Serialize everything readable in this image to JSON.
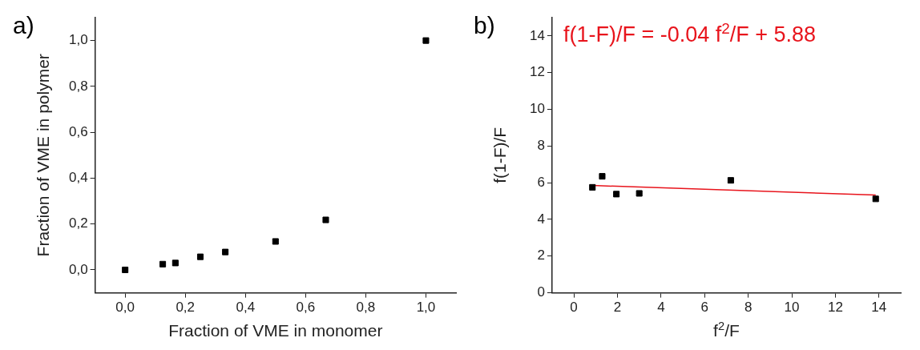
{
  "chart_data": [
    {
      "type": "scatter",
      "title": "a)",
      "xlabel": "Fraction of VME in monomer",
      "ylabel": "Fraction of VME in polymer",
      "x": [
        0,
        0.125,
        0.167,
        0.25,
        0.333,
        0.5,
        0.667,
        1.0
      ],
      "series": [
        {
          "color": "#000000",
          "values": [
            0,
            0.025,
            0.03,
            0.057,
            0.078,
            0.124,
            0.218,
            1.0
          ]
        }
      ],
      "xlim": [
        -0.1,
        1.1
      ],
      "ylim": [
        -0.1,
        1.1
      ],
      "xticks": [
        {
          "value": 0,
          "label": "0,0"
        },
        {
          "value": 0.2,
          "label": "0,2"
        },
        {
          "value": 0.4,
          "label": "0,4"
        },
        {
          "value": 0.6,
          "label": "0,6"
        },
        {
          "value": 0.8,
          "label": "0,8"
        },
        {
          "value": 1.0,
          "label": "1,0"
        }
      ],
      "yticks": [
        {
          "value": 0,
          "label": "0,0"
        },
        {
          "value": 0.2,
          "label": "0,2"
        },
        {
          "value": 0.4,
          "label": "0,4"
        },
        {
          "value": 0.6,
          "label": "0,6"
        },
        {
          "value": 0.8,
          "label": "0,8"
        },
        {
          "value": 1.0,
          "label": "1,0"
        }
      ],
      "grid": false,
      "legend": false,
      "marker": "square"
    },
    {
      "type": "scatter",
      "title": "b)",
      "xlabel": "f$^{2}$/F",
      "ylabel": "f(1-F)/F",
      "annotations": [
        "f(1-F)/F = -0.04 f$^{2}$/F + 5.88"
      ],
      "x": [
        0.85,
        1.3,
        1.95,
        3.0,
        7.2,
        13.85
      ],
      "series": [
        {
          "color": "#000000",
          "values": [
            5.75,
            6.35,
            5.38,
            5.42,
            6.13,
            5.12
          ]
        },
        {
          "type": "line",
          "color": "#e8141c",
          "marker": "none",
          "x": [
            0.85,
            13.85
          ],
          "values": [
            5.85,
            5.33
          ]
        }
      ],
      "xlim": [
        -1,
        15
      ],
      "ylim": [
        0,
        15
      ],
      "xticks": [
        0,
        2,
        4,
        6,
        8,
        10,
        12,
        14
      ],
      "yticks": [
        0,
        2,
        4,
        6,
        8,
        10,
        12,
        14
      ],
      "grid": false,
      "legend": false,
      "marker": "square"
    }
  ]
}
